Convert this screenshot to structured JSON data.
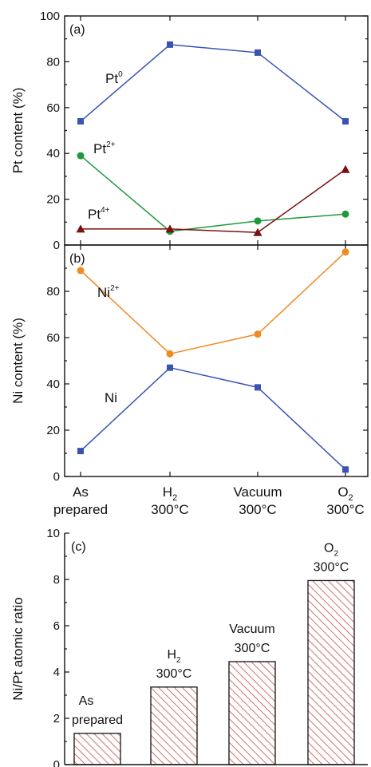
{
  "chart_data": [
    {
      "panel_label": "(a)",
      "type": "line",
      "ylabel": "Pt content (%)",
      "ylim": [
        0,
        100
      ],
      "yticks": [
        "0",
        "20",
        "40",
        "60",
        "80",
        "100"
      ],
      "categories": [
        "As prepared",
        "H2 300°C",
        "Vacuum 300°C",
        "O2 300°C"
      ],
      "series": [
        {
          "name": "Pt",
          "sup": "0",
          "color": "#3953b3",
          "marker": "square",
          "values": [
            54,
            87.5,
            84,
            54
          ]
        },
        {
          "name": "Pt",
          "sup": "2+",
          "color": "#1f9a3a",
          "marker": "circle",
          "values": [
            39,
            6,
            10.5,
            13.5
          ]
        },
        {
          "name": "Pt",
          "sup": "4+",
          "color": "#7a1111",
          "marker": "triangle",
          "values": [
            7,
            7,
            5.5,
            33
          ]
        }
      ]
    },
    {
      "panel_label": "(b)",
      "type": "line",
      "ylabel": "Ni content (%)",
      "ylim": [
        0,
        100
      ],
      "yticks": [
        "0",
        "20",
        "40",
        "60",
        "80"
      ],
      "categories": [
        "As prepared",
        "H2 300°C",
        "Vacuum 300°C",
        "O2 300°C"
      ],
      "series": [
        {
          "name": "Ni",
          "sup": "2+",
          "color": "#f08a24",
          "marker": "circle",
          "values": [
            89,
            53,
            61.5,
            97
          ]
        },
        {
          "name": "Ni",
          "sup": "",
          "color": "#3953b3",
          "marker": "square",
          "values": [
            11,
            47,
            38.5,
            3
          ]
        }
      ]
    },
    {
      "panel_label": "(c)",
      "type": "bar",
      "ylabel": "Ni/Pt atomic ratio",
      "ylim": [
        0,
        10
      ],
      "yticks": [
        "0",
        "2",
        "4",
        "6",
        "8",
        "10"
      ],
      "categories": [
        "As prepared",
        "H2 300°C",
        "Vacuum 300°C",
        "O2 300°C"
      ],
      "values": [
        1.35,
        3.35,
        4.45,
        7.95
      ],
      "bar_color": "#c0453a"
    }
  ],
  "x_tick_labels": [
    {
      "line1": "As",
      "line1_sub": "",
      "line2": "prepared"
    },
    {
      "line1": "H",
      "line1_sub": "2",
      "line2": "300°C"
    },
    {
      "line1": "Vacuum",
      "line1_sub": "",
      "line2": "300°C"
    },
    {
      "line1": "O",
      "line1_sub": "2",
      "line2": "300°C"
    }
  ]
}
